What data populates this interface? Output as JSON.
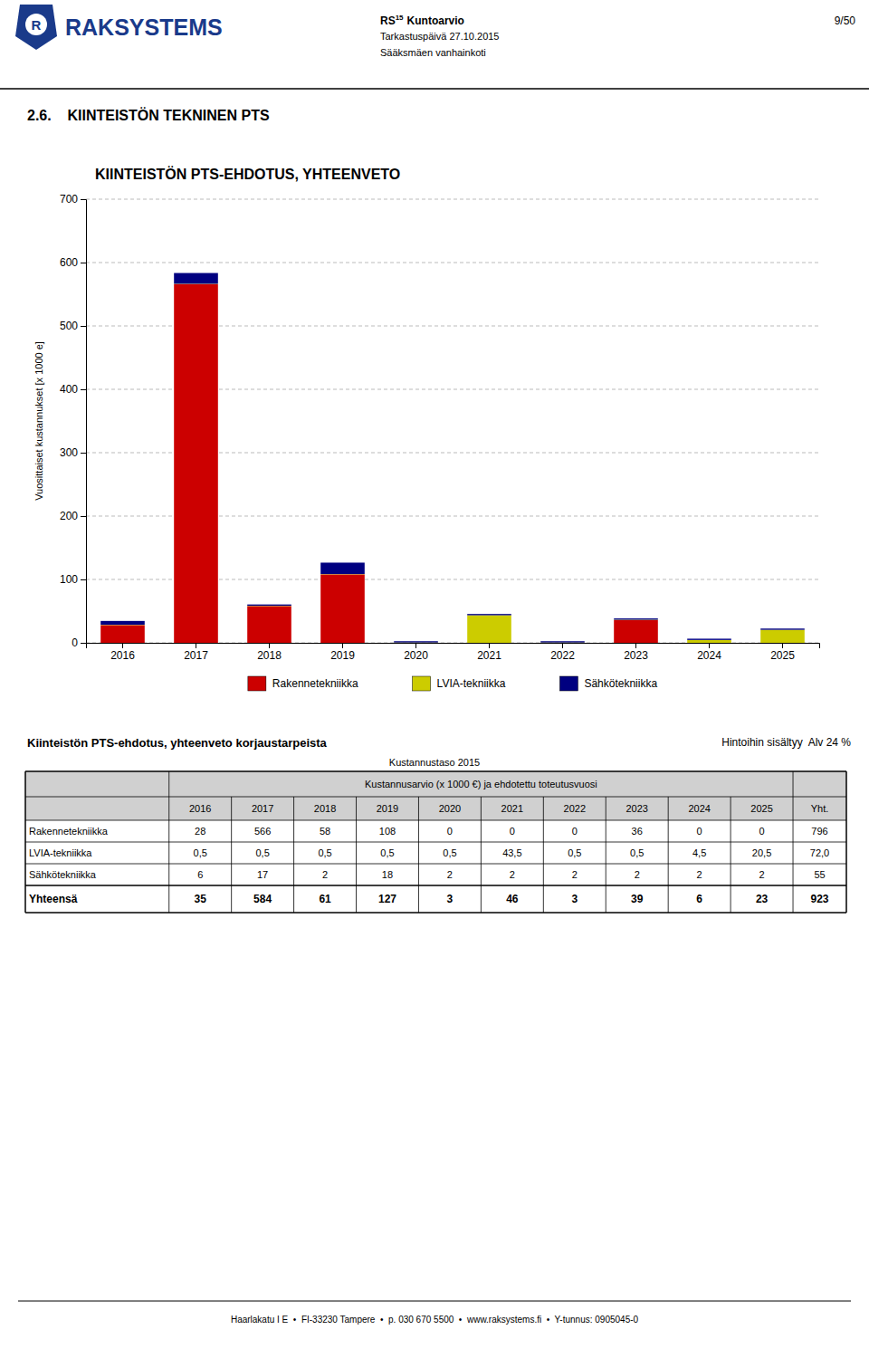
{
  "chart_data": {
    "type": "bar",
    "title": "KIINTEISTÖN PTS-EHDOTUS, YHTEENVETO",
    "categories": [
      "2016",
      "2017",
      "2018",
      "2019",
      "2020",
      "2021",
      "2022",
      "2023",
      "2024",
      "2025"
    ],
    "series": [
      {
        "name": "Rakennetekniikka",
        "color": "#CC0000",
        "values": [
          28,
          566,
          58,
          108,
          0,
          0,
          0,
          36,
          0,
          0
        ]
      },
      {
        "name": "LVIA-tekniikka",
        "color": "#CCCC00",
        "values": [
          0.5,
          0.5,
          0.5,
          0.5,
          0.5,
          43.5,
          0.5,
          0.5,
          4.5,
          20.5
        ]
      },
      {
        "name": "Sähkötekniikka",
        "color": "#000080",
        "values": [
          6,
          17,
          2,
          18,
          2,
          2,
          2,
          2,
          2,
          2
        ]
      }
    ],
    "stacked": true,
    "ylabel": "Vuosittaiset kustannukset [x 1000 e]",
    "ylim": [
      0,
      700
    ],
    "yticks": [
      0,
      100,
      200,
      300,
      400,
      500,
      600,
      700
    ],
    "grid": true,
    "legend": "bottom"
  },
  "header": {
    "logo_mark": "R",
    "logo_text": "RAKSYSTEMS",
    "rs": "RS",
    "sup": "15",
    "kuntoarvio": "Kuntoarvio",
    "date": "Tarkastuspäivä 27.10.2015",
    "building": "Sääksmäen vanhainkoti",
    "page": "9/50"
  },
  "section_title": "2.6.    KIINTEISTÖN TEKNINEN PTS",
  "table": {
    "title": "Kiinteistön PTS-ehdotus, yhteenveto korjaustarpeista",
    "subtitle_right": "Hintoihin sisältyy  Alv 24 %",
    "subtitle_center": "Kustannustaso 2015",
    "header": "Kustannusarvio (x 1000 €) ja ehdotettu toteutusvuosi",
    "col_headers": [
      "2016",
      "2017",
      "2018",
      "2019",
      "2020",
      "2021",
      "2022",
      "2023",
      "2024",
      "2025",
      "Yht."
    ],
    "rows": [
      [
        "Rakennetekniikka",
        "28",
        "566",
        "58",
        "108",
        "0",
        "0",
        "0",
        "36",
        "0",
        "0",
        "796"
      ],
      [
        "LVIA-tekniikka",
        "0,5",
        "0,5",
        "0,5",
        "0,5",
        "0,5",
        "43,5",
        "0,5",
        "0,5",
        "4,5",
        "20,5",
        "72,0"
      ],
      [
        "Sähkötekniikka",
        "6",
        "17",
        "2",
        "18",
        "2",
        "2",
        "2",
        "2",
        "2",
        "2",
        "55"
      ]
    ],
    "total": [
      "Yhteensä",
      "35",
      "584",
      "61",
      "127",
      "3",
      "46",
      "3",
      "39",
      "6",
      "23",
      "923"
    ]
  },
  "footer": "Haarlakatu I E  •  FI-33230 Tampere  •  p. 030 670 5500  •  www.raksystems.fi  •  Y-tunnus: 0905045-0"
}
